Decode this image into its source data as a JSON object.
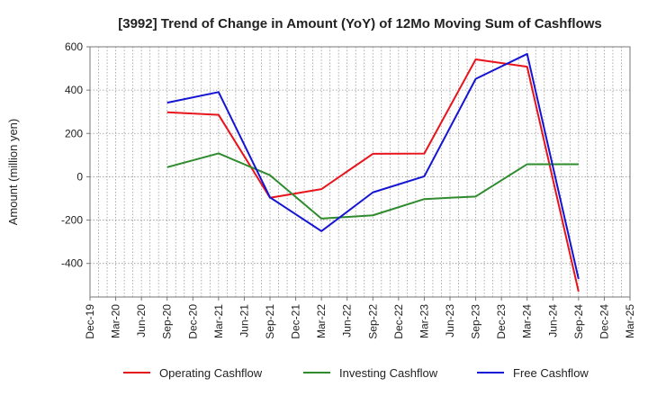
{
  "chart_data": {
    "type": "line",
    "title": "[3992]  Trend of Change in Amount (YoY) of 12Mo Moving Sum of Cashflows",
    "xlabel": "",
    "ylabel": "Amount (million yen)",
    "categories": [
      "Dec-19",
      "Mar-20",
      "Jun-20",
      "Sep-20",
      "Dec-20",
      "Mar-21",
      "Jun-21",
      "Sep-21",
      "Dec-21",
      "Mar-22",
      "Jun-22",
      "Sep-22",
      "Dec-22",
      "Mar-23",
      "Jun-23",
      "Sep-23",
      "Dec-23",
      "Mar-24",
      "Jun-24",
      "Sep-24",
      "Dec-24",
      "Mar-25"
    ],
    "ylim": [
      -555,
      600
    ],
    "yticks": [
      600,
      400,
      200,
      0,
      -200,
      -400
    ],
    "ytick_labels": [
      "600",
      "400",
      "200",
      "0",
      "-200",
      "-400"
    ],
    "grid": true,
    "legend_position": "bottom",
    "series": [
      {
        "name": "Operating Cashflow",
        "color": "#e8141c",
        "values": [
          null,
          null,
          null,
          298,
          null,
          286,
          null,
          -97,
          null,
          -57,
          null,
          106,
          null,
          107,
          null,
          542,
          null,
          508,
          null,
          -530,
          null,
          null
        ]
      },
      {
        "name": "Investing Cashflow",
        "color": "#2e8b2e",
        "values": [
          null,
          null,
          null,
          44,
          null,
          108,
          null,
          7,
          null,
          -193,
          null,
          -178,
          null,
          -103,
          null,
          -91,
          null,
          58,
          null,
          58,
          null,
          null
        ]
      },
      {
        "name": "Free Cashflow",
        "color": "#1414d4",
        "values": [
          null,
          null,
          null,
          342,
          null,
          391,
          null,
          -95,
          null,
          -251,
          null,
          -72,
          null,
          2,
          null,
          452,
          null,
          567,
          null,
          -472,
          null,
          null
        ]
      }
    ]
  }
}
